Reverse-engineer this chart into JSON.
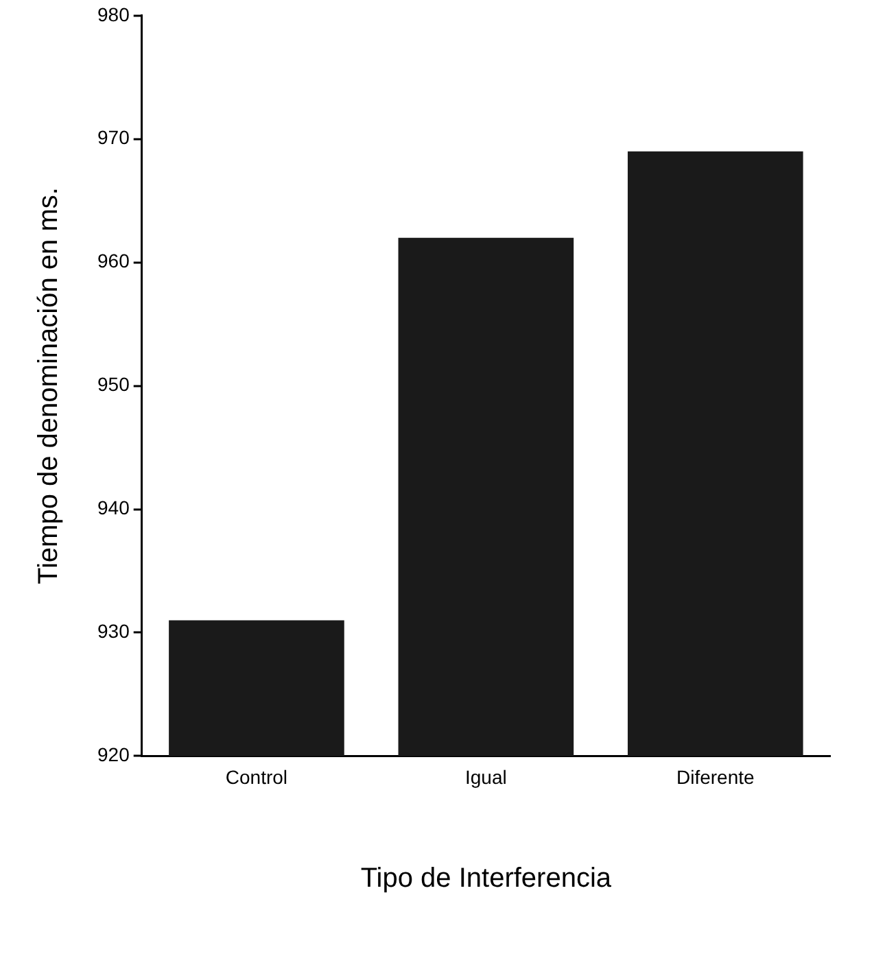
{
  "chart_data": {
    "type": "bar",
    "xlabel": "Tipo de Interferencia",
    "ylabel": "Tiempo de denominación en ms.",
    "categories": [
      "Control",
      "Igual",
      "Diferente"
    ],
    "values": [
      931,
      962,
      969
    ],
    "color": "#1a1a1a",
    "ylim": [
      920,
      980
    ],
    "yticks": [
      920,
      930,
      940,
      950,
      960,
      970,
      980
    ],
    "grid": false,
    "legend": false
  }
}
